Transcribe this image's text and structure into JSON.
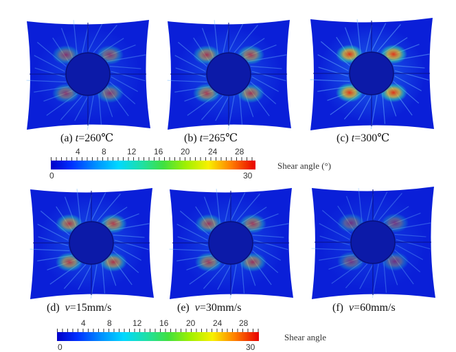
{
  "panels_top": [
    {
      "caption_letter": "(a)",
      "caption_var": "t",
      "caption_rest": "=260℃",
      "heat": 0.55
    },
    {
      "caption_letter": "(b)",
      "caption_var": "t",
      "caption_rest": "=265℃",
      "heat": 0.7
    },
    {
      "caption_letter": "(c)",
      "caption_var": "t",
      "caption_rest": "=300℃",
      "heat": 1.0
    }
  ],
  "panels_bottom": [
    {
      "caption_letter": "(d)",
      "caption_var": "v",
      "caption_rest": "=15mm/s",
      "heat": 0.75
    },
    {
      "caption_letter": "(e)",
      "caption_var": "v",
      "caption_rest": "=30mm/s",
      "heat": 0.65
    },
    {
      "caption_letter": "(f)",
      "caption_var": "v",
      "caption_rest": "=60mm/s",
      "heat": 0.45
    }
  ],
  "colorbar_top": {
    "ticks": [
      "4",
      "8",
      "12",
      "16",
      "20",
      "24",
      "28"
    ],
    "min": "0",
    "max": "30",
    "label": "Shear angle (°)"
  },
  "colorbar_bottom": {
    "ticks": [
      "4",
      "8",
      "12",
      "16",
      "20",
      "24",
      "28"
    ],
    "min": "0",
    "max": "30",
    "label": "Shear angle"
  },
  "colors": {
    "low": "#0a1fd8",
    "mid": "#28e0b0",
    "high": "#e83010"
  }
}
